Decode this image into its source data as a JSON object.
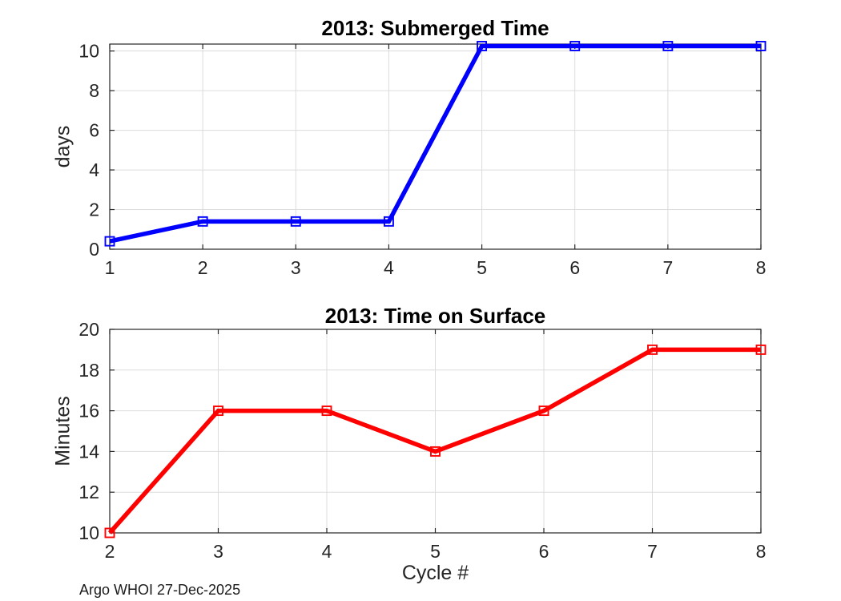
{
  "figure": {
    "watermark": "Argo WHOI 27-Dec-2025"
  },
  "style": {
    "background": "#ffffff",
    "axis_color": "#262626",
    "grid_color": "#dcdcdc",
    "title_color": "#000000",
    "tick_label_color": "#262626"
  },
  "chart_data": [
    {
      "type": "line",
      "title": "2013: Submerged Time",
      "xlabel": "",
      "ylabel": "days",
      "x": [
        1,
        2,
        3,
        4,
        5,
        6,
        7,
        8
      ],
      "values": [
        0.4,
        1.4,
        1.4,
        1.4,
        10.25,
        10.25,
        10.25,
        10.25
      ],
      "xlim": [
        1,
        8
      ],
      "ylim": [
        0,
        10.35
      ],
      "xticks": [
        1,
        2,
        3,
        4,
        5,
        6,
        7,
        8
      ],
      "yticks": [
        0,
        2,
        4,
        6,
        8,
        10
      ],
      "line_color": "#0000ff",
      "line_width": 5.5,
      "marker": "open-square",
      "grid": true,
      "legend": null
    },
    {
      "type": "line",
      "title": "2013: Time on Surface",
      "xlabel": "Cycle #",
      "ylabel": "Minutes",
      "x": [
        2,
        3,
        4,
        5,
        6,
        7,
        8
      ],
      "values": [
        10,
        16,
        16,
        14,
        16,
        19,
        19
      ],
      "xlim": [
        2,
        8
      ],
      "ylim": [
        10,
        20
      ],
      "xticks": [
        2,
        3,
        4,
        5,
        6,
        7,
        8
      ],
      "yticks": [
        10,
        12,
        14,
        16,
        18,
        20
      ],
      "line_color": "#ff0000",
      "line_width": 5.5,
      "marker": "open-square",
      "grid": true,
      "legend": null
    }
  ]
}
